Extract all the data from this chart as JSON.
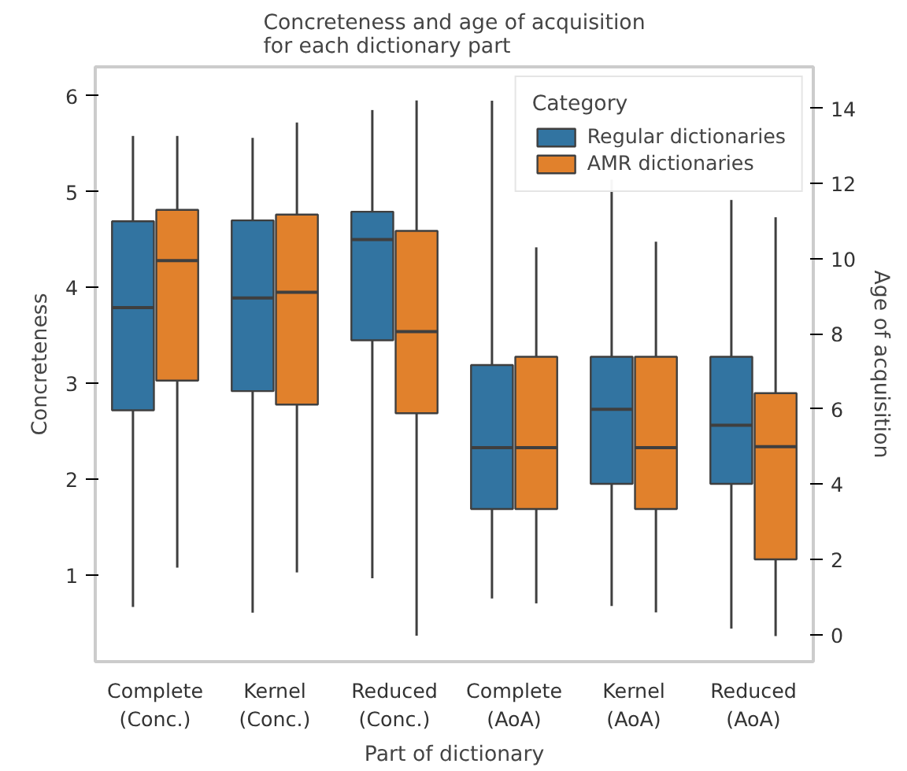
{
  "chart_data": {
    "type": "box",
    "title": "Concreteness and age of acquisition\nfor each dictionary part",
    "xlabel": "Part of dictionary",
    "ylabel": "Concreteness",
    "y2label": "Age of acquisition",
    "legend_title": "Category",
    "legend": "top right",
    "grid": false,
    "categories": [
      "Complete\n(Conc.)",
      "Kernel\n(Conc.)",
      "Reduced\n(Conc.)",
      "Complete\n(AoA)",
      "Kernel\n(AoA)",
      "Reduced\n(AoA)"
    ],
    "ylim": [
      0.1,
      6.3
    ],
    "yticks": [
      1,
      2,
      3,
      4,
      5,
      6
    ],
    "y2lim": [
      -0.72,
      15.1
    ],
    "y2ticks": [
      0,
      2,
      4,
      6,
      8,
      10,
      12,
      14
    ],
    "series": [
      {
        "name": "Regular dictionaries",
        "color": "#3274a1",
        "boxes": [
          {
            "low": 0.67,
            "q1": 2.72,
            "median": 3.79,
            "q3": 4.69,
            "high": 5.58
          },
          {
            "low": 0.61,
            "q1": 2.92,
            "median": 3.89,
            "q3": 4.7,
            "high": 5.56
          },
          {
            "low": 0.97,
            "q1": 3.45,
            "median": 4.5,
            "q3": 4.79,
            "high": 5.85
          },
          null,
          null,
          null
        ]
      },
      {
        "name": "AMR dictionaries",
        "color": "#e1812c",
        "boxes": [
          {
            "low": 1.08,
            "q1": 3.03,
            "median": 4.28,
            "q3": 4.81,
            "high": 5.58
          },
          {
            "low": 1.03,
            "q1": 2.78,
            "median": 3.95,
            "q3": 4.76,
            "high": 5.72
          },
          {
            "low": 0.37,
            "q1": 2.69,
            "median": 3.54,
            "q3": 4.59,
            "high": 5.95
          },
          null,
          null,
          null
        ]
      },
      {
        "color": "#3274a1",
        "axis": "y2",
        "boxes": [
          null,
          null,
          null,
          {
            "low": 0.96,
            "q1": 3.34,
            "median": 4.97,
            "q3": 7.17,
            "high": 14.2
          },
          {
            "low": 0.76,
            "q1": 4.01,
            "median": 5.99,
            "q3": 7.39,
            "high": 12.1
          },
          {
            "low": 0.16,
            "q1": 4.01,
            "median": 5.57,
            "q3": 7.39,
            "high": 11.56
          }
        ]
      },
      {
        "color": "#e1812c",
        "axis": "y2",
        "boxes": [
          null,
          null,
          null,
          {
            "low": 0.83,
            "q1": 3.34,
            "median": 4.97,
            "q3": 7.39,
            "high": 10.3
          },
          {
            "low": 0.59,
            "q1": 3.34,
            "median": 4.97,
            "q3": 7.39,
            "high": 10.45
          },
          {
            "low": -0.04,
            "q1": 2.0,
            "median": 5.0,
            "q3": 6.42,
            "high": 11.1
          }
        ]
      }
    ]
  }
}
